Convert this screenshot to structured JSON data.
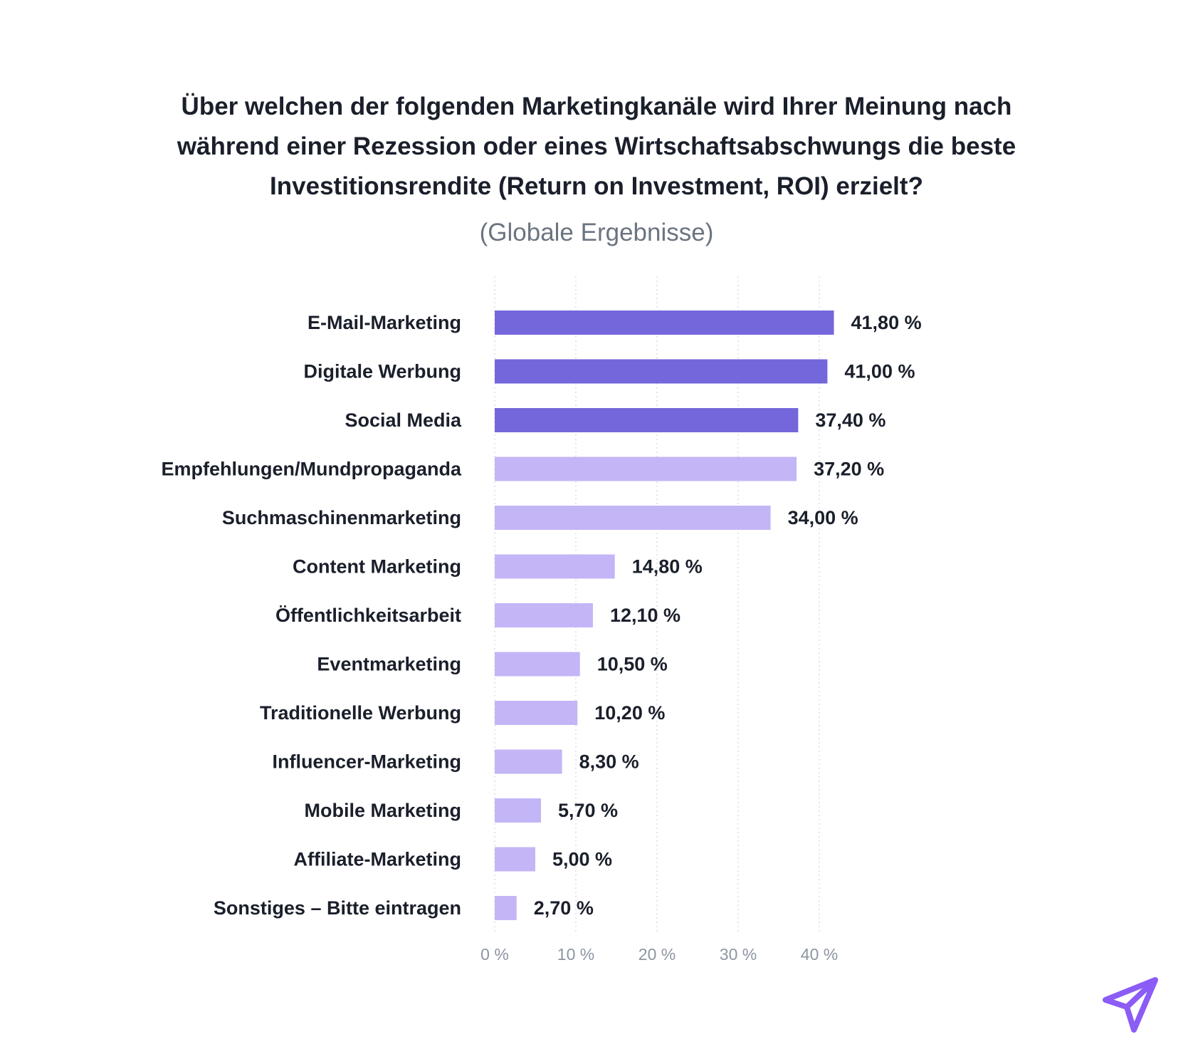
{
  "colors": {
    "highlight": "#7367db",
    "regular": "#c4b5f7",
    "text": "#1a1f2b",
    "axis_text": "#8c95a1",
    "grid": "#dcdfe4",
    "logo": "#8b5cf6"
  },
  "icons": {
    "logo": "paper-plane-logo-icon"
  },
  "chart_data": {
    "type": "bar",
    "orientation": "horizontal",
    "title_lines": [
      "Über welchen der folgenden Marketingkanäle wird Ihrer Meinung nach",
      "während einer Rezession oder eines Wirtschaftsabschwungs die beste",
      "Investitionsrendite (Return on Investment, ROI) erzielt?"
    ],
    "subtitle": "(Globale Ergebnisse)",
    "categories": [
      "E-Mail-Marketing",
      "Digitale Werbung",
      "Social Media",
      "Empfehlungen/Mundpropaganda",
      "Suchmaschinenmarketing",
      "Content Marketing",
      "Öffentlichkeitsarbeit",
      "Eventmarketing",
      "Traditionelle Werbung",
      "Influencer-Marketing",
      "Mobile Marketing",
      "Affiliate-Marketing",
      "Sonstiges – Bitte eintragen"
    ],
    "values": [
      41.8,
      41.0,
      37.4,
      37.2,
      34.0,
      14.8,
      12.1,
      10.5,
      10.2,
      8.3,
      5.7,
      5.0,
      2.7
    ],
    "value_labels": [
      "41,80 %",
      "41,00 %",
      "37,40 %",
      "37,20 %",
      "34,00 %",
      "14,80 %",
      "12,10 %",
      "10,50 %",
      "10,20 %",
      "8,30 %",
      "5,70 %",
      "5,00 %",
      "2,70 %"
    ],
    "highlighted": [
      true,
      true,
      true,
      false,
      false,
      false,
      false,
      false,
      false,
      false,
      false,
      false,
      false
    ],
    "xticks": [
      0,
      10,
      20,
      30,
      40
    ],
    "xtick_labels": [
      "0 %",
      "10 %",
      "20 %",
      "30 %",
      "40 %"
    ],
    "xlim": [
      0,
      45
    ],
    "grid": true,
    "legend": "none"
  }
}
